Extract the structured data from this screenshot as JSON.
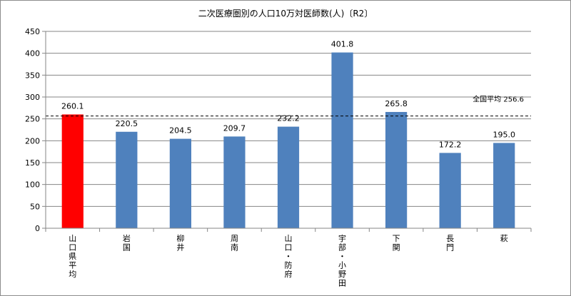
{
  "chart_data": {
    "type": "bar",
    "title": "二次医療圏別の人口10万対医師数(人)〔R2〕",
    "categories": [
      "山口県平均",
      "岩国",
      "柳井",
      "周南",
      "山口・防府",
      "宇部・小野田",
      "下関",
      "長門",
      "萩"
    ],
    "values": [
      260.1,
      220.5,
      204.5,
      209.7,
      232.2,
      401.8,
      265.8,
      172.2,
      195.0
    ],
    "value_labels": [
      "260.1",
      "220.5",
      "204.5",
      "209.7",
      "232.2",
      "401.8",
      "265.8",
      "172.2",
      "195.0"
    ],
    "colors": [
      "#ff0000",
      "#4f81bd",
      "#4f81bd",
      "#4f81bd",
      "#4f81bd",
      "#4f81bd",
      "#4f81bd",
      "#4f81bd",
      "#4f81bd"
    ],
    "ylim": [
      0,
      450
    ],
    "yticks": [
      0,
      50,
      100,
      150,
      200,
      250,
      300,
      350,
      400,
      450
    ],
    "grid": true,
    "xlabel": "",
    "ylabel": "",
    "reference_line": {
      "label": "全国平均 256.6",
      "value": 256.6,
      "style": "dashed"
    }
  }
}
